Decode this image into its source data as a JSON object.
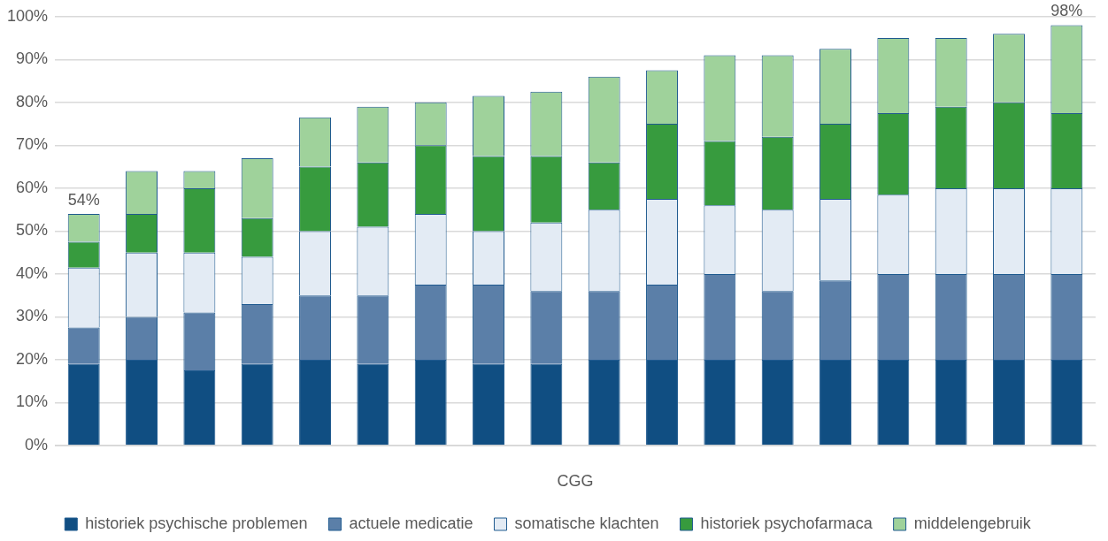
{
  "chart_data": {
    "type": "bar",
    "stacked": true,
    "xlabel": "CGG",
    "categories": [
      null,
      null,
      null,
      null,
      null,
      null,
      null,
      null,
      null,
      null,
      null,
      null,
      null,
      null,
      null,
      null,
      null,
      null
    ],
    "series": [
      {
        "name": "historiek psychische problemen",
        "color": "#104e82",
        "values": [
          19,
          20,
          17.5,
          19,
          20,
          19,
          20,
          19,
          19,
          20,
          20,
          20,
          20,
          20,
          20,
          20,
          20,
          20
        ]
      },
      {
        "name": "actuele medicatie",
        "color": "#5b7fa8",
        "values": [
          8.5,
          10,
          13.5,
          14,
          15,
          16,
          17.5,
          18.5,
          17,
          16,
          17.5,
          20,
          16,
          18.5,
          20,
          20,
          20,
          20
        ]
      },
      {
        "name": "somatische klachten",
        "color": "#e3ebf4",
        "values": [
          14,
          15,
          14,
          11,
          15,
          16,
          16.5,
          12.5,
          16,
          19,
          20,
          16,
          19,
          19,
          18.5,
          20,
          20,
          20
        ]
      },
      {
        "name": "historiek psychofarmaca",
        "color": "#379b3e",
        "values": [
          6,
          9,
          15,
          9,
          15,
          15,
          16,
          17.5,
          15.5,
          11,
          17.5,
          15,
          17,
          17.5,
          19,
          19,
          20,
          17.5
        ]
      },
      {
        "name": "middelengebruik",
        "color": "#9fd29b",
        "values": [
          6.5,
          10,
          4,
          14,
          11.5,
          13,
          10,
          14,
          15,
          20,
          12.5,
          20,
          19,
          17.5,
          17.5,
          16,
          16,
          20.5
        ]
      }
    ],
    "totals": [
      "54%",
      null,
      null,
      null,
      null,
      null,
      null,
      null,
      null,
      null,
      null,
      null,
      null,
      null,
      null,
      null,
      null,
      "98%"
    ],
    "ylim": [
      0,
      100
    ],
    "yticks": [
      {
        "value": 0,
        "label": "0%"
      },
      {
        "value": 10,
        "label": "10%"
      },
      {
        "value": 20,
        "label": "20%"
      },
      {
        "value": 30,
        "label": "30%"
      },
      {
        "value": 40,
        "label": "40%"
      },
      {
        "value": 50,
        "label": "50%"
      },
      {
        "value": 60,
        "label": "60%"
      },
      {
        "value": 70,
        "label": "70%"
      },
      {
        "value": 80,
        "label": "80%"
      },
      {
        "value": 90,
        "label": "90%"
      },
      {
        "value": 100,
        "label": "100%"
      }
    ],
    "grid": "y",
    "legend": "bottom"
  }
}
